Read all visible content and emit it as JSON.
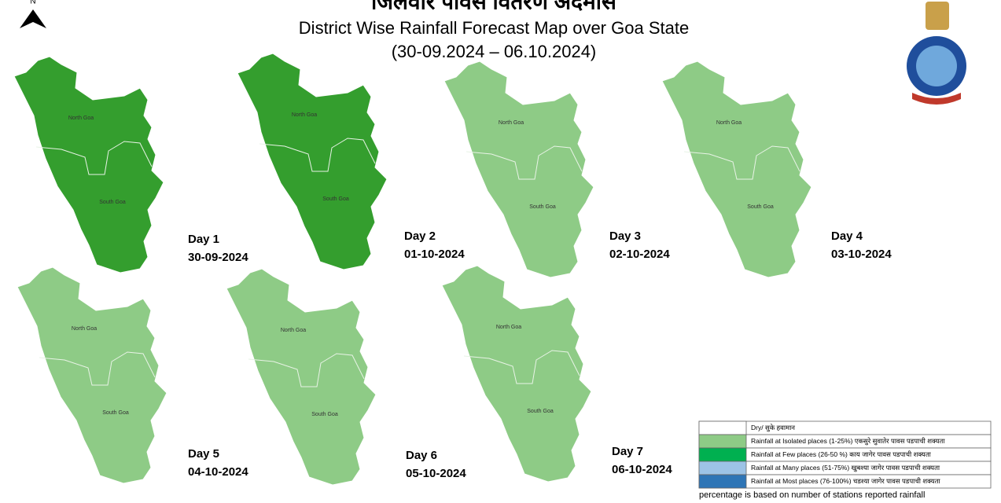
{
  "header": {
    "title_local": "जिलेवार पावस वितरण अदमास",
    "title": "District Wise Rainfall Forecast Map over Goa State",
    "period": "(30-09.2024 – 06.10.2024)",
    "north": "N"
  },
  "districts": [
    "North Goa",
    "South Goa"
  ],
  "maps": [
    {
      "day": "Day 1",
      "date": "30-09-2024",
      "color": "#349e2e"
    },
    {
      "day": "Day 2",
      "date": "01-10-2024",
      "color": "#349e2e"
    },
    {
      "day": "Day 3",
      "date": "02-10-2024",
      "color": "#8ecb86"
    },
    {
      "day": "Day 4",
      "date": "03-10-2024",
      "color": "#8ecb86"
    },
    {
      "day": "Day 5",
      "date": "04-10-2024",
      "color": "#8ecb86"
    },
    {
      "day": "Day 6",
      "date": "05-10-2024",
      "color": "#8ecb86"
    },
    {
      "day": "Day 7",
      "date": "06-10-2024",
      "color": "#8ecb86"
    }
  ],
  "legend": {
    "items": [
      {
        "label": "Dry/ सुके हवामान",
        "color": "#ffffff"
      },
      {
        "label": "Rainfall at Isolated places  (1-25%) एकसुरे सुवातेर पावस पडपाची शक्यता",
        "color": "#8ecb86"
      },
      {
        "label": "Rainfall at Few places (26-50 %) काय जागेर पावस पडपाची शक्यता",
        "color": "#00b050"
      },
      {
        "label": "Rainfall at Many places (51-75%) खुबश्या जागेर पावस पडपाची शक्यता",
        "color": "#9dc3e6"
      },
      {
        "label": "Rainfall at Most places (76-100%) चडश्या जागेर पावस पडपाची शक्यता",
        "color": "#2e75b6"
      }
    ],
    "note": "percentage is based on number of stations reported rainfall"
  }
}
